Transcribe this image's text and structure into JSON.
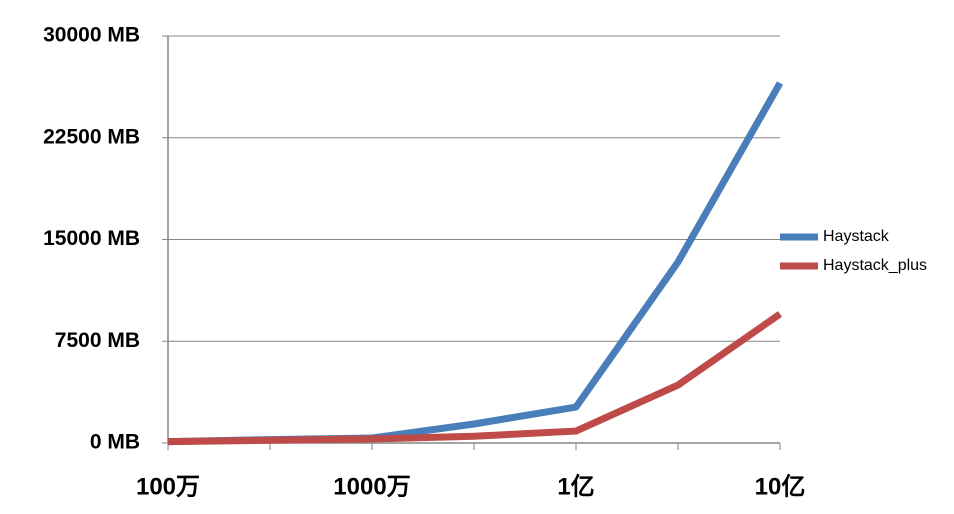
{
  "chart_data": {
    "type": "line",
    "categories": [
      "100万",
      null,
      "1000万",
      null,
      "1亿",
      null,
      "10亿"
    ],
    "series": [
      {
        "name": "Haystack",
        "color": "#4a7ebb",
        "values": [
          100,
          250,
          370,
          1400,
          2650,
          13340,
          26530
        ]
      },
      {
        "name": "Haystack_plus",
        "color": "#be4b48",
        "values": [
          100,
          200,
          300,
          500,
          880,
          4270,
          9510
        ]
      }
    ],
    "ylim": [
      0,
      30000
    ],
    "yticks": [
      {
        "value": 0,
        "label": "0 MB"
      },
      {
        "value": 7500,
        "label": "7500 MB"
      },
      {
        "value": 15000,
        "label": "15000 MB"
      },
      {
        "value": 22500,
        "label": "22500 MB"
      },
      {
        "value": 30000,
        "label": "30000 MB"
      }
    ],
    "grid": true,
    "legend": "right"
  }
}
